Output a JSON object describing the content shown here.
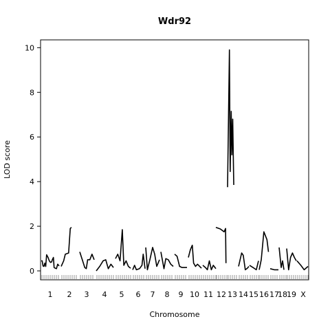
{
  "chart_data": {
    "type": "line",
    "title": "Wdr92",
    "xlabel": "Chromosome",
    "ylabel": "LOD score",
    "ylim": [
      -0.4,
      10.35
    ],
    "yticks": [
      0,
      2,
      4,
      6,
      8,
      10
    ],
    "grid": false,
    "legend": "none",
    "line_color": "#000000",
    "chromosomes": [
      {
        "label": "1",
        "points": [
          [
            0,
            0.45
          ],
          [
            0.05,
            0.45
          ],
          [
            0.1,
            0.22
          ],
          [
            0.15,
            0.2
          ],
          [
            0.2,
            0.35
          ],
          [
            0.25,
            0.2
          ],
          [
            0.3,
            0.72
          ],
          [
            0.38,
            0.6
          ],
          [
            0.45,
            0.45
          ],
          [
            0.52,
            0.38
          ],
          [
            0.58,
            0.4
          ],
          [
            0.62,
            0.5
          ],
          [
            0.68,
            0.6
          ],
          [
            0.72,
            0.15
          ],
          [
            0.78,
            0.12
          ],
          [
            0.85,
            0.1
          ],
          [
            0.92,
            0.3
          ],
          [
            1,
            0.22
          ]
        ]
      },
      {
        "label": "2",
        "points": [
          [
            0,
            0.2
          ],
          [
            0.15,
            0.45
          ],
          [
            0.25,
            0.75
          ],
          [
            0.45,
            0.8
          ],
          [
            0.55,
            1.9
          ],
          [
            0.62,
            1.95
          ]
        ]
      },
      {
        "label": "3",
        "points": [
          [
            0,
            0.85
          ],
          [
            0.2,
            0.45
          ],
          [
            0.35,
            0.15
          ],
          [
            0.45,
            0.1
          ],
          [
            0.55,
            0.5
          ],
          [
            0.7,
            0.5
          ],
          [
            0.85,
            0.75
          ],
          [
            1,
            0.5
          ]
        ]
      },
      {
        "label": "4",
        "points": [
          [
            0,
            0
          ],
          [
            0.2,
            0.2
          ],
          [
            0.4,
            0.45
          ],
          [
            0.55,
            0.5
          ],
          [
            0.7,
            0.1
          ],
          [
            0.85,
            0.3
          ],
          [
            1,
            0.15
          ]
        ]
      },
      {
        "label": "5",
        "points": [
          [
            0,
            0.55
          ],
          [
            0.15,
            0.75
          ],
          [
            0.3,
            0.45
          ],
          [
            0.45,
            1.85
          ],
          [
            0.55,
            0.25
          ],
          [
            0.7,
            0.45
          ],
          [
            0.85,
            0.2
          ],
          [
            1,
            0.12
          ]
        ]
      },
      {
        "label": "6",
        "points": [
          [
            0,
            0.05
          ],
          [
            0.15,
            0.25
          ],
          [
            0.3,
            0.05
          ],
          [
            0.55,
            0.1
          ],
          [
            0.75,
            0.25
          ],
          [
            0.85,
            0.75
          ],
          [
            1,
            0.1
          ]
        ]
      },
      {
        "label": "7",
        "points": [
          [
            0,
            1.05
          ],
          [
            0.12,
            0.05
          ],
          [
            0.3,
            0.5
          ],
          [
            0.5,
            1.05
          ],
          [
            0.65,
            0.75
          ],
          [
            0.8,
            0.2
          ],
          [
            1,
            0.5
          ]
        ]
      },
      {
        "label": "8",
        "points": [
          [
            0,
            0.85
          ],
          [
            0.25,
            0.1
          ],
          [
            0.4,
            0.55
          ],
          [
            0.6,
            0.5
          ],
          [
            0.8,
            0.3
          ],
          [
            1,
            0.2
          ]
        ]
      },
      {
        "label": "9",
        "points": [
          [
            0,
            0.75
          ],
          [
            0.2,
            0.65
          ],
          [
            0.4,
            0.2
          ],
          [
            0.6,
            0.15
          ],
          [
            1,
            0.15
          ]
        ]
      },
      {
        "label": "10",
        "points": [
          [
            0,
            0.6
          ],
          [
            0.15,
            0.95
          ],
          [
            0.3,
            1.15
          ],
          [
            0.4,
            0.35
          ],
          [
            0.55,
            0.2
          ],
          [
            0.7,
            0.3
          ],
          [
            1,
            0.12
          ]
        ]
      },
      {
        "label": "11",
        "points": [
          [
            0,
            0.25
          ],
          [
            0.2,
            0.15
          ],
          [
            0.35,
            0.05
          ],
          [
            0.5,
            0.45
          ],
          [
            0.65,
            0.05
          ],
          [
            0.8,
            0.25
          ],
          [
            1,
            0.1
          ]
        ]
      },
      {
        "label": "12",
        "points": [
          [
            0,
            1.95
          ],
          [
            0.4,
            1.88
          ],
          [
            0.75,
            1.75
          ],
          [
            0.88,
            1.9
          ],
          [
            0.92,
            0.35
          ]
        ]
      },
      {
        "label": "13",
        "points": [
          [
            0,
            3.75
          ],
          [
            0.18,
            9.9
          ],
          [
            0.25,
            4.45
          ],
          [
            0.35,
            7.15
          ],
          [
            0.42,
            5.2
          ],
          [
            0.5,
            6.8
          ],
          [
            0.6,
            3.85
          ]
        ]
      },
      {
        "label": "14",
        "points": [
          [
            0,
            0.2
          ],
          [
            0.3,
            0.8
          ],
          [
            0.45,
            0.7
          ],
          [
            0.65,
            0.05
          ],
          [
            0.85,
            0.12
          ],
          [
            1,
            0.2
          ]
        ]
      },
      {
        "label": "15",
        "points": [
          [
            0,
            0.25
          ],
          [
            0.5,
            0.12
          ],
          [
            0.75,
            0.05
          ],
          [
            1,
            0.45
          ]
        ]
      },
      {
        "label": "16",
        "points": [
          [
            0,
            0.05
          ],
          [
            0.2,
            0.5
          ],
          [
            0.45,
            1.75
          ],
          [
            0.75,
            1.4
          ],
          [
            0.9,
            0.85
          ]
        ]
      },
      {
        "label": "17",
        "points": [
          [
            0,
            0.1
          ],
          [
            0.5,
            0.05
          ],
          [
            1,
            0.05
          ]
        ]
      },
      {
        "label": "18",
        "points": [
          [
            0,
            1.05
          ],
          [
            0.3,
            0.15
          ],
          [
            0.5,
            0.45
          ],
          [
            0.7,
            0.05
          ]
        ]
      },
      {
        "label": "19",
        "points": [
          [
            0,
            1.0
          ],
          [
            0.2,
            0.05
          ],
          [
            0.4,
            0.6
          ],
          [
            0.6,
            0.8
          ],
          [
            0.8,
            0.6
          ],
          [
            1,
            0.45
          ]
        ]
      },
      {
        "label": "X",
        "points": [
          [
            0,
            0.45
          ],
          [
            0.35,
            0.25
          ],
          [
            0.65,
            0.05
          ],
          [
            1,
            0.2
          ]
        ]
      }
    ]
  }
}
